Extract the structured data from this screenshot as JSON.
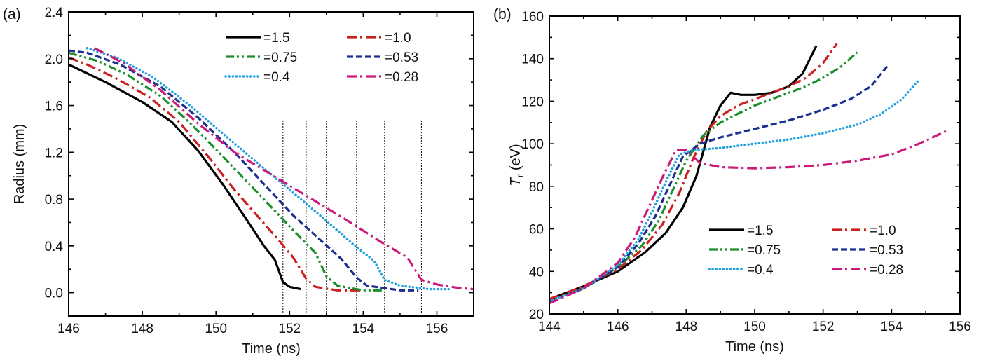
{
  "chart_data": [
    {
      "type": "line",
      "panel_label": "(a)",
      "xlabel": "Time (ns)",
      "ylabel": "Radius (mm)",
      "xlim": [
        146,
        157
      ],
      "ylim": [
        -0.2,
        2.4
      ],
      "xticks": [
        146,
        148,
        150,
        152,
        154,
        156
      ],
      "xtick_labels": [
        "146",
        "148",
        "150",
        "152",
        "154",
        "156"
      ],
      "yticks": [
        0.0,
        0.4,
        0.8,
        1.2,
        1.6,
        2.0,
        2.4
      ],
      "ytick_labels": [
        "0.0",
        "0.4",
        "0.8",
        "1.2",
        "1.6",
        "2.0",
        "2.4"
      ],
      "legend_position": "top-right",
      "vertical_markers": [
        151.82,
        152.45,
        153.0,
        153.82,
        154.58,
        155.58
      ],
      "series": [
        {
          "name": "=1.5",
          "color": "#000000",
          "style": "solid",
          "x": [
            146.0,
            147.0,
            148.0,
            148.8,
            149.5,
            150.2,
            150.8,
            151.3,
            151.6,
            151.82,
            152.0,
            152.3
          ],
          "y": [
            1.95,
            1.8,
            1.63,
            1.46,
            1.22,
            0.92,
            0.64,
            0.4,
            0.28,
            0.09,
            0.05,
            0.03
          ]
        },
        {
          "name": "=1.0",
          "color": "#cc1f1f",
          "style": "dashdot",
          "x": [
            146.0,
            146.5,
            147.3,
            148.2,
            149.0,
            149.8,
            150.5,
            151.2,
            151.7,
            152.1,
            152.45,
            152.7,
            153.3,
            154.0
          ],
          "y": [
            2.01,
            1.95,
            1.83,
            1.67,
            1.46,
            1.16,
            0.88,
            0.63,
            0.45,
            0.3,
            0.12,
            0.05,
            0.02,
            0.02
          ]
        },
        {
          "name": "=0.75",
          "color": "#1a8f2a",
          "style": "dashdotdot",
          "x": [
            146.0,
            146.8,
            147.6,
            148.5,
            149.3,
            150.2,
            150.9,
            151.6,
            152.2,
            152.7,
            153.0,
            153.3,
            154.0,
            154.6
          ],
          "y": [
            2.05,
            1.98,
            1.86,
            1.68,
            1.45,
            1.16,
            0.93,
            0.7,
            0.5,
            0.34,
            0.14,
            0.06,
            0.02,
            0.02
          ]
        },
        {
          "name": "=0.53",
          "color": "#1a2f8f",
          "style": "dashed",
          "x": [
            146.0,
            146.5,
            147.4,
            148.5,
            149.5,
            150.5,
            151.3,
            152.1,
            152.8,
            153.4,
            153.82,
            154.1,
            155.0,
            155.5
          ],
          "y": [
            2.07,
            2.05,
            1.95,
            1.76,
            1.5,
            1.2,
            0.93,
            0.66,
            0.46,
            0.29,
            0.13,
            0.06,
            0.02,
            0.02
          ]
        },
        {
          "name": "=0.4",
          "color": "#1f9fe0",
          "style": "dotted",
          "x": [
            146.5,
            147.3,
            148.3,
            149.3,
            150.3,
            151.2,
            152.0,
            152.9,
            153.7,
            154.3,
            154.58,
            155.0,
            155.8,
            156.4
          ],
          "y": [
            2.09,
            2.01,
            1.84,
            1.6,
            1.33,
            1.09,
            0.88,
            0.64,
            0.42,
            0.27,
            0.11,
            0.06,
            0.03,
            0.03
          ]
        },
        {
          "name": "=0.28",
          "color": "#cc1a7a",
          "style": "dashdot",
          "x": [
            146.7,
            147.5,
            148.5,
            149.5,
            150.5,
            151.5,
            152.5,
            153.5,
            154.5,
            155.2,
            155.58,
            156.0,
            156.6,
            157.0
          ],
          "y": [
            2.09,
            1.96,
            1.73,
            1.45,
            1.2,
            1.01,
            0.82,
            0.63,
            0.43,
            0.3,
            0.11,
            0.07,
            0.04,
            0.03
          ]
        }
      ]
    },
    {
      "type": "line",
      "panel_label": "(b)",
      "xlabel": "Time (ns)",
      "ylabel_symbol": "T",
      "ylabel_subscript": "r",
      "ylabel_unit": " (eV)",
      "xlim": [
        144,
        156
      ],
      "ylim": [
        20,
        160
      ],
      "xticks": [
        144,
        146,
        148,
        150,
        152,
        154,
        156
      ],
      "xtick_labels": [
        "144",
        "146",
        "148",
        "150",
        "152",
        "154",
        "156"
      ],
      "yticks": [
        20,
        40,
        60,
        80,
        100,
        120,
        140,
        160
      ],
      "ytick_labels": [
        "20",
        "40",
        "60",
        "80",
        "100",
        "120",
        "140",
        "160"
      ],
      "legend_position": "bottom-right",
      "series": [
        {
          "name": "=1.5",
          "color": "#000000",
          "style": "solid",
          "x": [
            144.0,
            145.0,
            146.0,
            146.8,
            147.4,
            147.9,
            148.3,
            148.7,
            149.0,
            149.3,
            149.6,
            150.0,
            150.5,
            151.0,
            151.4,
            151.8
          ],
          "y": [
            27,
            33,
            40,
            49,
            58,
            70,
            85,
            108,
            118,
            124,
            123,
            123,
            124,
            127,
            133,
            146
          ]
        },
        {
          "name": "=1.0",
          "color": "#cc1f1f",
          "style": "dashdot",
          "x": [
            144.0,
            145.0,
            146.0,
            146.7,
            147.3,
            147.8,
            148.2,
            148.6,
            149.0,
            149.5,
            150.0,
            150.5,
            151.0,
            151.5,
            152.0,
            152.4
          ],
          "y": [
            27,
            33,
            41,
            50,
            62,
            77,
            93,
            106,
            113,
            118,
            121,
            124,
            127,
            131,
            138,
            147
          ]
        },
        {
          "name": "=0.75",
          "color": "#1a8f2a",
          "style": "dashdotdot",
          "x": [
            144.0,
            145.0,
            146.0,
            146.7,
            147.2,
            147.6,
            148.0,
            148.5,
            149.0,
            149.5,
            150.0,
            150.5,
            151.0,
            151.5,
            152.0,
            152.5,
            153.0
          ],
          "y": [
            26,
            32,
            42,
            52,
            64,
            78,
            92,
            104,
            110,
            114,
            118,
            121,
            124,
            127,
            131,
            136,
            143
          ]
        },
        {
          "name": "=0.53",
          "color": "#1a2f8f",
          "style": "dashed",
          "x": [
            144.0,
            145.0,
            146.0,
            146.6,
            147.1,
            147.5,
            147.9,
            148.4,
            149.0,
            150.0,
            151.0,
            152.0,
            152.8,
            153.4,
            153.9
          ],
          "y": [
            26,
            32,
            42,
            53,
            66,
            80,
            94,
            100,
            103,
            107,
            111,
            116,
            121,
            127,
            137
          ]
        },
        {
          "name": "=0.4",
          "color": "#1f9fe0",
          "style": "dotted",
          "x": [
            144.0,
            145.0,
            146.0,
            146.6,
            147.0,
            147.4,
            147.8,
            148.2,
            149.0,
            150.0,
            151.0,
            152.0,
            153.0,
            153.7,
            154.3,
            154.8
          ],
          "y": [
            26,
            32,
            43,
            55,
            68,
            82,
            95,
            97,
            98,
            100,
            102,
            105,
            109,
            114,
            121,
            130
          ]
        },
        {
          "name": "=0.28",
          "color": "#cc1a7a",
          "style": "dashdot",
          "x": [
            144.0,
            145.0,
            146.0,
            146.5,
            146.9,
            147.3,
            147.7,
            148.0,
            148.4,
            149.0,
            150.0,
            151.0,
            152.0,
            153.0,
            154.0,
            154.8,
            155.6
          ],
          "y": [
            25,
            32,
            44,
            56,
            70,
            84,
            97,
            97,
            91,
            89,
            88.5,
            89,
            90,
            92,
            95,
            100,
            106
          ]
        }
      ]
    }
  ]
}
